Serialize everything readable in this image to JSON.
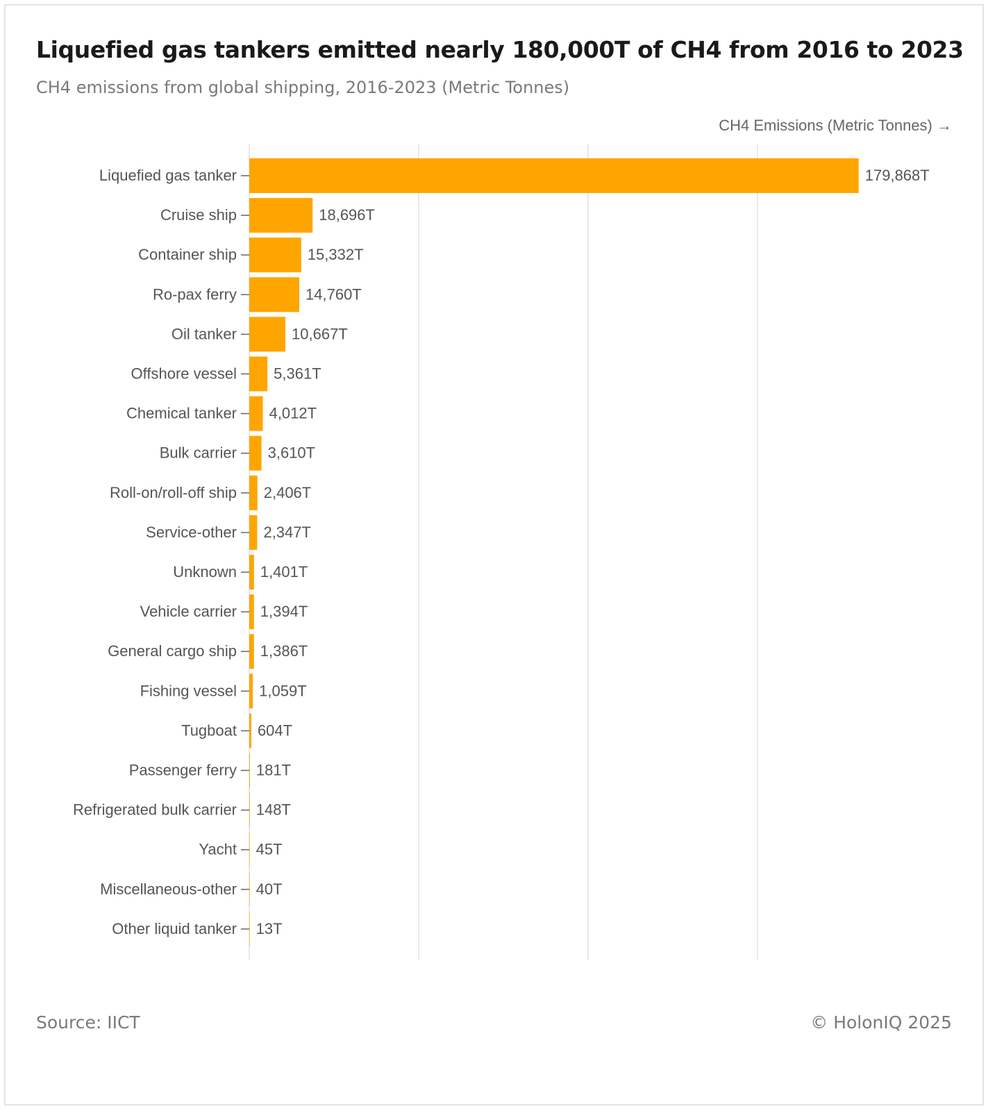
{
  "header": {
    "title": "Liquefied gas tankers emitted nearly 180,000T of CH4 from 2016 to 2023",
    "subtitle": "CH4 emissions from global shipping, 2016-2023 (Metric Tonnes)"
  },
  "footer": {
    "source": "Source: IICT",
    "copyright": "© HolonIQ 2025"
  },
  "colors": {
    "bar": "#FFA500",
    "grid": "#e0e0e0",
    "text": "#555555"
  },
  "chart_data": {
    "type": "bar",
    "orientation": "horizontal",
    "xlabel": "CH4 Emissions (Metric Tonnes) →",
    "xlim": [
      0,
      200000
    ],
    "grid": true,
    "value_suffix": "T",
    "categories": [
      "Liquefied gas tanker",
      "Cruise ship",
      "Container ship",
      "Ro-pax ferry",
      "Oil tanker",
      "Offshore vessel",
      "Chemical tanker",
      "Bulk carrier",
      "Roll-on/roll-off ship",
      "Service-other",
      "Unknown",
      "Vehicle carrier",
      "General cargo ship",
      "Fishing vessel",
      "Tugboat",
      "Passenger ferry",
      "Refrigerated bulk carrier",
      "Yacht",
      "Miscellaneous-other",
      "Other liquid tanker"
    ],
    "values": [
      179868,
      18696,
      15332,
      14760,
      10667,
      5361,
      4012,
      3610,
      2406,
      2347,
      1401,
      1394,
      1386,
      1059,
      604,
      181,
      148,
      45,
      40,
      13
    ],
    "value_labels": [
      "179,868T",
      "18,696T",
      "15,332T",
      "14,760T",
      "10,667T",
      "5,361T",
      "4,012T",
      "3,610T",
      "2,406T",
      "2,347T",
      "1,401T",
      "1,394T",
      "1,386T",
      "1,059T",
      "604T",
      "181T",
      "148T",
      "45T",
      "40T",
      "13T"
    ]
  }
}
